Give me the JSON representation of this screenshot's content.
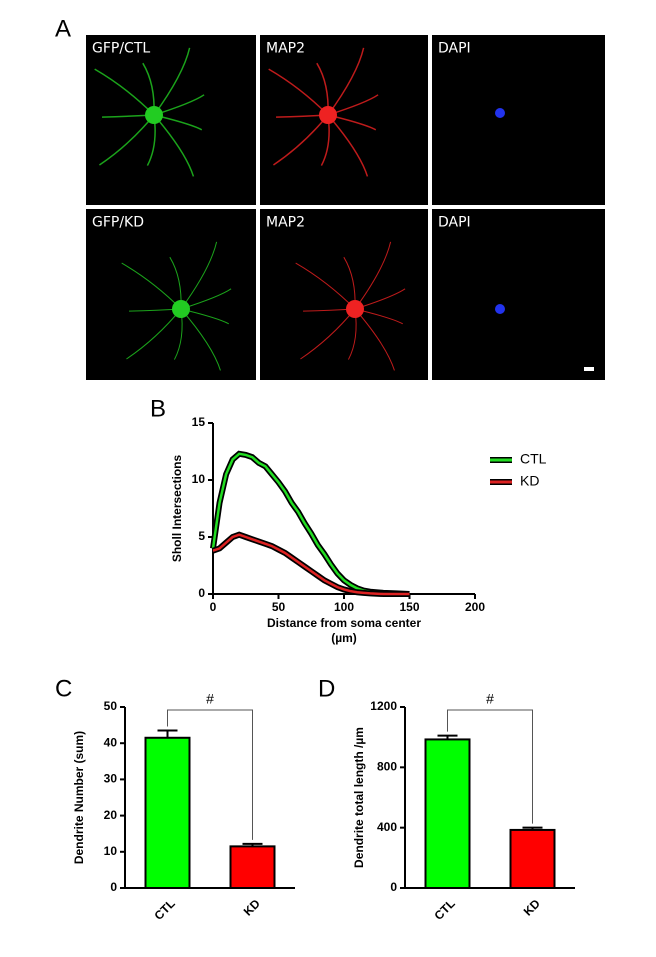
{
  "panel_a": {
    "label": "A",
    "tiles": [
      "GFP/CTL",
      "MAP2",
      "DAPI",
      "GFP/KD",
      "MAP2",
      "DAPI"
    ]
  },
  "chart_data": [
    {
      "type": "line",
      "panel": "B",
      "ylabel": "Sholl Intersections",
      "xlabel": [
        "Distance from soma center",
        "(µm)"
      ],
      "x": [
        0,
        5,
        10,
        15,
        20,
        25,
        30,
        35,
        40,
        45,
        50,
        55,
        60,
        65,
        70,
        75,
        80,
        85,
        90,
        95,
        100,
        105,
        110,
        115,
        120,
        130,
        140,
        150
      ],
      "series": [
        {
          "name": "CTL",
          "color": "#22dd22",
          "values": [
            4,
            8,
            10.5,
            11.8,
            12.3,
            12.2,
            12,
            11.5,
            11.2,
            10.5,
            9.8,
            9,
            8,
            7.2,
            6.2,
            5.3,
            4.3,
            3.5,
            2.6,
            1.8,
            1.2,
            0.8,
            0.5,
            0.3,
            0.2,
            0.1,
            0.05,
            0
          ]
        },
        {
          "name": "KD",
          "color": "#dd2222",
          "values": [
            3.8,
            4,
            4.5,
            5,
            5.2,
            5,
            4.8,
            4.6,
            4.4,
            4.2,
            3.9,
            3.6,
            3.2,
            2.8,
            2.4,
            2,
            1.6,
            1.2,
            0.9,
            0.6,
            0.4,
            0.25,
            0.15,
            0.1,
            0.05,
            0,
            0,
            0
          ]
        }
      ],
      "xlim": [
        0,
        200
      ],
      "xticks": [
        0,
        50,
        100,
        150,
        200
      ],
      "ylim": [
        0,
        15
      ],
      "yticks": [
        0,
        5,
        10,
        15
      ]
    },
    {
      "type": "bar",
      "panel": "C",
      "ylabel": "Dendrite Number (sum)",
      "categories": [
        "CTL",
        "KD"
      ],
      "values": [
        41.5,
        11.5
      ],
      "errors": [
        2,
        0.7
      ],
      "colors": [
        "#00ff00",
        "#ff0000"
      ],
      "ylim": [
        0,
        50
      ],
      "yticks": [
        0,
        10,
        20,
        30,
        40,
        50
      ],
      "annotation": "#"
    },
    {
      "type": "bar",
      "panel": "D",
      "ylabel": "Dendrite total length /µm",
      "categories": [
        "CTL",
        "KD"
      ],
      "values": [
        985,
        385
      ],
      "errors": [
        25,
        15
      ],
      "colors": [
        "#00ff00",
        "#ff0000"
      ],
      "ylim": [
        0,
        1200
      ],
      "yticks": [
        0,
        400,
        800,
        1200
      ],
      "annotation": "#"
    }
  ]
}
